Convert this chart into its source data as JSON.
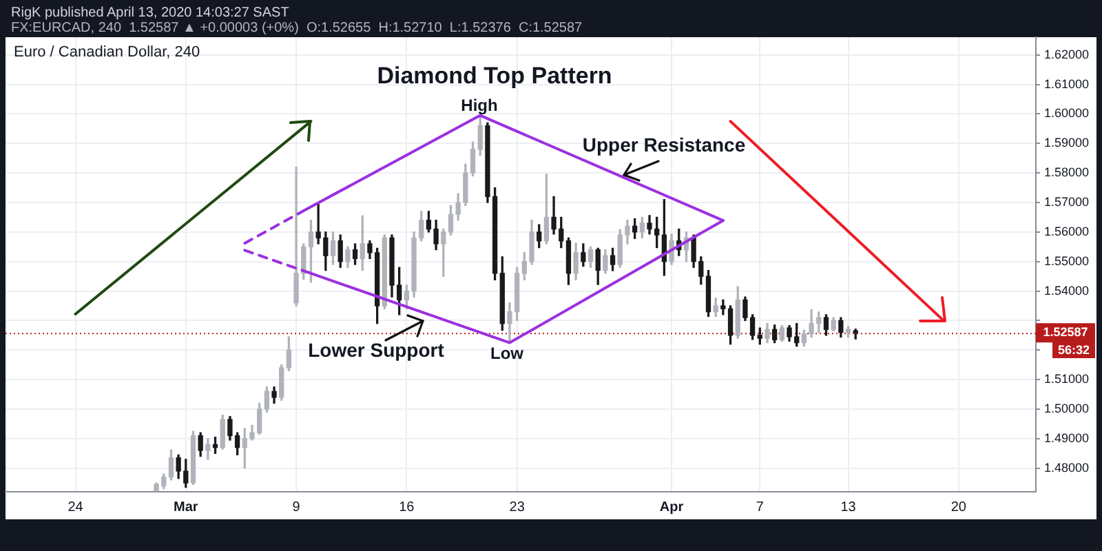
{
  "chart_data": {
    "type": "candlestick",
    "title": "Diamond Top Pattern",
    "subtitle": "Euro / Canadian Dollar, 240",
    "annotations": [
      "RigK published April 13, 2020 14:03:27 SAST",
      "FX:EURCAD, 240  1.52587 ▲ +0.00003 (+0%)  O:1.52655  H:1.52710  L:1.52376  C:1.52587",
      "High",
      "Low",
      "Upper Resistance",
      "Lower Support",
      "56:32"
    ],
    "categories": [
      null,
      null,
      null,
      null,
      null,
      null,
      null,
      null,
      null,
      "24",
      null,
      null,
      null,
      null,
      null,
      null,
      null,
      null,
      null,
      null,
      null,
      null,
      null,
      null,
      "Mar",
      null,
      null,
      null,
      null,
      null,
      null,
      null,
      null,
      null,
      null,
      null,
      null,
      null,
      null,
      "9",
      null,
      null,
      null,
      null,
      null,
      null,
      null,
      null,
      null,
      null,
      null,
      null,
      null,
      null,
      "16",
      null,
      null,
      null,
      null,
      null,
      null,
      null,
      null,
      null,
      null,
      null,
      null,
      null,
      null,
      "23",
      null,
      null,
      null,
      null,
      null,
      null,
      null,
      null,
      null,
      null,
      null,
      null,
      null,
      null,
      null,
      null,
      null,
      null,
      null,
      null,
      "Apr",
      null,
      null,
      null,
      null,
      null,
      null,
      null,
      null,
      null,
      null,
      null,
      "7",
      null,
      null,
      null,
      null,
      null,
      null,
      null,
      null,
      null,
      null,
      null,
      "13",
      null,
      null,
      null,
      null,
      null,
      null,
      null,
      null,
      null,
      null,
      null,
      null,
      null,
      null,
      "20",
      null,
      null,
      null,
      null,
      null,
      null,
      null,
      null,
      null,
      null
    ],
    "series": [
      {
        "colors": [
          null,
          null,
          null,
          null,
          null,
          null,
          null,
          null,
          null,
          null,
          null,
          null,
          null,
          null,
          null,
          null,
          null,
          null,
          null,
          null,
          "#b0b3ba",
          "#b0b3ba",
          "#b0b3ba",
          "#1a1a1a",
          "#1a1a1a",
          "#b0b3ba",
          "#1a1a1a",
          "#b0b3ba",
          "#1a1a1a",
          "#b0b3ba",
          "#1a1a1a",
          "#1a1a1a",
          "#b0b3ba",
          "#b0b3ba",
          "#b0b3ba",
          "#b0b3ba",
          "#1a1a1a",
          "#b0b3ba",
          "#b0b3ba",
          "#b0b3ba",
          "#b0b3ba",
          "#b0b3ba",
          "#1a1a1a",
          "#1a1a1a",
          "#b0b3ba",
          "#1a1a1a",
          "#b0b3ba",
          "#1a1a1a",
          "#b0b3ba",
          "#1a1a1a",
          "#1a1a1a",
          "#b0b3ba",
          "#1a1a1a",
          "#1a1a1a",
          "#b0b3ba",
          "#b0b3ba",
          "#b0b3ba",
          "#1a1a1a",
          "#1a1a1a",
          "#b0b3ba",
          "#b0b3ba",
          "#b0b3ba",
          "#b0b3ba",
          "#b0b3ba",
          "#b0b3ba",
          "#1a1a1a",
          "#1a1a1a",
          "#1a1a1a",
          "#b0b3ba",
          "#b0b3ba",
          "#b0b3ba",
          "#b0b3ba",
          "#1a1a1a",
          "#b0b3ba",
          "#1a1a1a",
          "#1a1a1a",
          "#1a1a1a",
          "#b0b3ba",
          "#1a1a1a",
          "#b0b3ba",
          "#1a1a1a",
          "#b0b3ba",
          "#1a1a1a",
          "#b0b3ba",
          "#b0b3ba",
          "#1a1a1a",
          "#b0b3ba",
          "#1a1a1a",
          "#1a1a1a",
          "#1a1a1a",
          "#b0b3ba",
          "#1a1a1a",
          "#b0b3ba",
          "#1a1a1a",
          "#1a1a1a",
          "#1a1a1a",
          "#b0b3ba",
          "#1a1a1a",
          "#1a1a1a",
          "#b0b3ba",
          "#1a1a1a",
          "#1a1a1a",
          "#1a1a1a",
          "#b0b3ba",
          "#1a1a1a",
          "#b0b3ba",
          "#1a1a1a",
          "#1a1a1a",
          "#b0b3ba",
          "#b0b3ba",
          "#b0b3ba",
          "#1a1a1a",
          "#b0b3ba",
          "#1a1a1a",
          "#b0b3ba",
          "#1a1a1a",
          null,
          null,
          null,
          null,
          null,
          null,
          null,
          null,
          null,
          null,
          null,
          null,
          null,
          null,
          null,
          null,
          null,
          null,
          null,
          null,
          null,
          null,
          null,
          null
        ],
        "ohlc": [
          null,
          null,
          null,
          null,
          null,
          null,
          null,
          null,
          null,
          null,
          null,
          null,
          null,
          null,
          null,
          null,
          null,
          null,
          null,
          null,
          [
            1.4724,
            1.475,
            1.4722,
            1.4745
          ],
          [
            1.474,
            1.478,
            1.473,
            1.477
          ],
          [
            1.477,
            1.4862,
            1.476,
            1.4835
          ],
          [
            1.4835,
            1.4845,
            1.4765,
            1.479
          ],
          [
            1.479,
            1.483,
            1.4735,
            1.475
          ],
          [
            1.475,
            1.4925,
            1.4745,
            1.491
          ],
          [
            1.491,
            1.492,
            1.484,
            1.486
          ],
          [
            1.486,
            1.49,
            1.483,
            1.488
          ],
          [
            1.488,
            1.4905,
            1.485,
            1.487
          ],
          [
            1.487,
            1.498,
            1.4865,
            1.4965
          ],
          [
            1.4965,
            1.4975,
            1.4895,
            1.491
          ],
          [
            1.491,
            1.492,
            1.4845,
            1.487
          ],
          [
            1.487,
            1.4935,
            1.48,
            1.49
          ],
          [
            1.49,
            1.4945,
            1.4895,
            1.492
          ],
          [
            1.492,
            1.502,
            1.4915,
            1.5
          ],
          [
            1.5,
            1.5075,
            1.499,
            1.506
          ],
          [
            1.506,
            1.5075,
            1.502,
            1.504
          ],
          [
            1.504,
            1.515,
            1.503,
            1.514
          ],
          [
            1.514,
            1.5245,
            1.513,
            1.52
          ],
          [
            1.536,
            1.582,
            1.535,
            1.546
          ],
          [
            1.546,
            1.556,
            1.544,
            1.555
          ],
          [
            1.555,
            1.564,
            1.543,
            1.56
          ],
          [
            1.56,
            1.5694,
            1.556,
            1.558
          ],
          [
            1.558,
            1.56,
            1.547,
            1.552
          ],
          [
            1.552,
            1.56,
            1.549,
            1.557
          ],
          [
            1.557,
            1.559,
            1.548,
            1.55
          ],
          [
            1.55,
            1.555,
            1.548,
            1.554
          ],
          [
            1.554,
            1.556,
            1.549,
            1.551
          ],
          [
            1.551,
            1.5655,
            1.547,
            1.556
          ],
          [
            1.556,
            1.557,
            1.551,
            1.553
          ],
          [
            1.553,
            1.5545,
            1.529,
            1.535
          ],
          [
            1.535,
            1.559,
            1.534,
            1.558
          ],
          [
            1.558,
            1.559,
            1.538,
            1.542
          ],
          [
            1.542,
            1.548,
            1.532,
            1.537
          ],
          [
            1.537,
            1.542,
            1.534,
            1.54
          ],
          [
            1.54,
            1.56,
            1.538,
            1.558
          ],
          [
            1.558,
            1.567,
            1.557,
            1.564
          ],
          [
            1.564,
            1.567,
            1.56,
            1.561
          ],
          [
            1.561,
            1.564,
            1.554,
            1.556
          ],
          [
            1.556,
            1.561,
            1.545,
            1.56
          ],
          [
            1.56,
            1.569,
            1.559,
            1.566
          ],
          [
            1.566,
            1.573,
            1.564,
            1.57
          ],
          [
            1.57,
            1.583,
            1.569,
            1.58
          ],
          [
            1.58,
            1.5905,
            1.579,
            1.588
          ],
          [
            1.588,
            1.599,
            1.586,
            1.596
          ],
          [
            1.596,
            1.597,
            1.57,
            1.572
          ],
          [
            1.572,
            1.575,
            1.5438,
            1.546
          ],
          [
            1.546,
            1.5516,
            1.5267,
            1.529
          ],
          [
            1.529,
            1.536,
            1.5228,
            1.533
          ],
          [
            1.533,
            1.548,
            1.53,
            1.546
          ],
          [
            1.546,
            1.5531,
            1.5438,
            1.55
          ],
          [
            1.55,
            1.564,
            1.549,
            1.56
          ],
          [
            1.56,
            1.5625,
            1.5547,
            1.557
          ],
          [
            1.557,
            1.5796,
            1.556,
            1.565
          ],
          [
            1.565,
            1.572,
            1.5593,
            1.561
          ],
          [
            1.561,
            1.565,
            1.5547,
            1.557
          ],
          [
            1.557,
            1.558,
            1.5422,
            1.546
          ],
          [
            1.546,
            1.5562,
            1.5438,
            1.553
          ],
          [
            1.553,
            1.556,
            1.5484,
            1.55
          ],
          [
            1.55,
            1.555,
            1.548,
            1.554
          ],
          [
            1.554,
            1.5545,
            1.5422,
            1.547
          ],
          [
            1.547,
            1.554,
            1.546,
            1.552
          ],
          [
            1.552,
            1.5545,
            1.5469,
            1.549
          ],
          [
            1.549,
            1.5608,
            1.548,
            1.559
          ],
          [
            1.559,
            1.564,
            1.556,
            1.562
          ],
          [
            1.562,
            1.5645,
            1.5578,
            1.56
          ],
          [
            1.56,
            1.565,
            1.558,
            1.563
          ],
          [
            1.563,
            1.5656,
            1.5593,
            1.561
          ],
          [
            1.561,
            1.565,
            1.5547,
            1.559
          ],
          [
            1.559,
            1.571,
            1.5453,
            1.55
          ],
          [
            1.55,
            1.5593,
            1.549,
            1.557
          ],
          [
            1.557,
            1.561,
            1.552,
            1.554
          ],
          [
            1.554,
            1.56,
            1.55,
            1.558
          ],
          [
            1.558,
            1.559,
            1.548,
            1.55
          ],
          [
            1.55,
            1.5516,
            1.5423,
            1.545
          ],
          [
            1.545,
            1.547,
            1.5314,
            1.533
          ],
          [
            1.533,
            1.5376,
            1.5314,
            1.535
          ],
          [
            1.535,
            1.537,
            1.532,
            1.534
          ],
          [
            1.534,
            1.535,
            1.522,
            1.525
          ],
          [
            1.525,
            1.5415,
            1.524,
            1.537
          ],
          [
            1.537,
            1.538,
            1.53,
            1.531
          ],
          [
            1.531,
            1.532,
            1.5236,
            1.525
          ],
          [
            1.525,
            1.5275,
            1.522,
            1.524
          ],
          [
            1.524,
            1.529,
            1.5225,
            1.527
          ],
          [
            1.527,
            1.5285,
            1.5225,
            1.5235
          ],
          [
            1.5235,
            1.5283,
            1.523,
            1.5275
          ],
          [
            1.5275,
            1.5283,
            1.523,
            1.5245
          ],
          [
            1.5245,
            1.529,
            1.5213,
            1.5225
          ],
          [
            1.5225,
            1.5267,
            1.5213,
            1.5255
          ],
          [
            1.5255,
            1.5337,
            1.5244,
            1.529
          ],
          [
            1.529,
            1.5329,
            1.526,
            1.531
          ],
          [
            1.531,
            1.532,
            1.525,
            1.527
          ],
          [
            1.527,
            1.531,
            1.5265,
            1.53
          ],
          [
            1.53,
            1.531,
            1.5244,
            1.526
          ],
          [
            1.526,
            1.528,
            1.5244,
            1.527
          ],
          [
            1.52655,
            1.5271,
            1.52376,
            1.52587
          ],
          null,
          null,
          null,
          null,
          null,
          null,
          null,
          null,
          null,
          null,
          null,
          null,
          null,
          null,
          null,
          null,
          null,
          null,
          null,
          null,
          null,
          null,
          null,
          null
        ]
      },
      {
        "type": "line",
        "color": "#9b30e0",
        "values": [
          null,
          null,
          null,
          null,
          null,
          null,
          null,
          null,
          null,
          null,
          null,
          null,
          null,
          null,
          null,
          null,
          null,
          null,
          null,
          null,
          null,
          null,
          null,
          null,
          null,
          null,
          null,
          null,
          null,
          null,
          null,
          null,
          null,
          null,
          null,
          null,
          null,
          null,
          null,
          null,
          1.5672,
          null,
          null,
          null,
          null,
          null,
          null,
          null,
          null,
          null,
          null,
          null,
          null,
          null,
          null,
          null,
          null,
          null,
          null,
          null,
          null,
          null,
          null,
          null,
          1.5995,
          null,
          null,
          null,
          null,
          null,
          null,
          null,
          null,
          null,
          null,
          null,
          null,
          null,
          null,
          null,
          null,
          null,
          null,
          null,
          null,
          null,
          null,
          null,
          null,
          null,
          null,
          null,
          null,
          null,
          null,
          null,
          null,
          1.5639,
          null,
          null,
          null,
          null,
          null,
          null,
          null,
          null,
          null,
          null,
          null,
          null,
          null,
          null,
          null,
          null,
          null,
          null,
          null,
          null,
          null,
          null,
          null,
          null,
          null,
          null,
          null,
          null,
          null,
          null,
          null,
          null,
          null,
          null,
          null,
          null,
          null,
          null,
          null,
          null,
          null,
          null
        ]
      },
      {
        "type": "line",
        "color": "#9b30e0",
        "values": [
          null,
          null,
          null,
          null,
          null,
          null,
          null,
          null,
          null,
          null,
          null,
          null,
          null,
          null,
          null,
          null,
          null,
          null,
          null,
          null,
          null,
          null,
          null,
          null,
          null,
          null,
          null,
          null,
          null,
          null,
          null,
          null,
          null,
          null,
          null,
          null,
          null,
          null,
          null,
          null,
          null,
          1.546,
          null,
          null,
          null,
          null,
          null,
          null,
          null,
          null,
          null,
          null,
          null,
          null,
          null,
          null,
          null,
          null,
          null,
          null,
          null,
          null,
          null,
          null,
          null,
          null,
          null,
          null,
          1.5225,
          null,
          null,
          null,
          null,
          null,
          null,
          null,
          null,
          null,
          null,
          null,
          null,
          null,
          null,
          null,
          null,
          null,
          null,
          null,
          null,
          null,
          null,
          null,
          null,
          null,
          null,
          null,
          null,
          1.5639,
          null,
          null,
          null,
          null,
          null,
          null,
          null,
          null,
          null,
          null,
          null,
          null,
          null,
          null,
          null,
          null,
          null,
          null,
          null,
          null,
          null,
          null,
          null,
          null,
          null,
          null,
          null,
          null,
          null,
          null,
          null,
          null,
          null,
          null,
          null,
          null,
          null,
          null,
          null,
          null,
          null,
          null
        ]
      },
      {
        "type": "line",
        "color": "#9b30e0",
        "line_style": "dashed",
        "values": [
          null,
          null,
          null,
          null,
          null,
          null,
          null,
          null,
          null,
          null,
          null,
          null,
          null,
          null,
          null,
          null,
          null,
          null,
          null,
          null,
          null,
          null,
          null,
          null,
          null,
          null,
          null,
          null,
          null,
          null,
          null,
          null,
          1.5562,
          null,
          null,
          null,
          null,
          null,
          null,
          null,
          1.5672,
          null,
          null,
          null,
          null,
          null,
          null,
          null,
          null,
          null,
          null,
          null,
          null,
          null,
          null,
          null,
          null,
          null,
          null,
          null,
          null,
          null,
          null,
          null,
          null,
          null,
          null,
          null,
          null,
          null,
          null,
          null,
          null,
          null,
          null,
          null,
          null,
          null,
          null,
          null,
          null,
          null,
          null,
          null,
          null,
          null,
          null,
          null,
          null,
          null,
          null,
          null,
          null,
          null,
          null,
          null,
          null,
          null,
          null,
          null,
          null,
          null,
          null,
          null,
          null,
          null,
          null,
          null,
          null,
          null,
          null,
          null,
          null,
          null,
          null,
          null,
          null,
          null,
          null,
          null,
          null,
          null,
          null,
          null,
          null,
          null,
          null,
          null,
          null,
          null,
          null,
          null,
          null,
          null,
          null,
          null,
          null,
          null,
          null,
          null
        ]
      },
      {
        "type": "line",
        "color": "#9b30e0",
        "line_style": "dashed",
        "values": [
          null,
          null,
          null,
          null,
          null,
          null,
          null,
          null,
          null,
          null,
          null,
          null,
          null,
          null,
          null,
          null,
          null,
          null,
          null,
          null,
          null,
          null,
          null,
          null,
          null,
          null,
          null,
          null,
          null,
          null,
          null,
          null,
          1.5538,
          null,
          null,
          null,
          null,
          null,
          null,
          null,
          null,
          1.546,
          null,
          null,
          null,
          null,
          null,
          null,
          null,
          null,
          null,
          null,
          null,
          null,
          null,
          null,
          null,
          null,
          null,
          null,
          null,
          null,
          null,
          null,
          null,
          null,
          null,
          null,
          null,
          null,
          null,
          null,
          null,
          null,
          null,
          null,
          null,
          null,
          null,
          null,
          null,
          null,
          null,
          null,
          null,
          null,
          null,
          null,
          null,
          null,
          null,
          null,
          null,
          null,
          null,
          null,
          null,
          null,
          null,
          null,
          null,
          null,
          null,
          null,
          null,
          null,
          null,
          null,
          null,
          null,
          null,
          null,
          null,
          null,
          null,
          null,
          null,
          null,
          null,
          null,
          null,
          null,
          null,
          null,
          null,
          null,
          null,
          null,
          null,
          null,
          null,
          null,
          null,
          null,
          null,
          null,
          null,
          null,
          null,
          null
        ]
      },
      {
        "type": "line",
        "color": "#1f4a12",
        "values": [
          null,
          null,
          null,
          null,
          null,
          null,
          null,
          null,
          null,
          1.5322,
          null,
          null,
          null,
          null,
          null,
          null,
          null,
          null,
          null,
          null,
          null,
          null,
          null,
          null,
          null,
          null,
          null,
          null,
          null,
          null,
          null,
          null,
          null,
          null,
          null,
          null,
          null,
          null,
          null,
          null,
          null,
          1.5975,
          null,
          null,
          null,
          null,
          null,
          null,
          null,
          null,
          null,
          null,
          null,
          null,
          null,
          null,
          null,
          null,
          null,
          null,
          null,
          null,
          null,
          null,
          null,
          null,
          null,
          null,
          null,
          null,
          null,
          null,
          null,
          null,
          null,
          null,
          null,
          null,
          null,
          null,
          null,
          null,
          null,
          null,
          null,
          null,
          null,
          null,
          null,
          null,
          null,
          null,
          null,
          null,
          null,
          null,
          null,
          null,
          null,
          null,
          null,
          null,
          null,
          null,
          null,
          null,
          null,
          null,
          null,
          null,
          null,
          null,
          null,
          null,
          null,
          null,
          null,
          null,
          null,
          null,
          null,
          null,
          null,
          null,
          null,
          null,
          null,
          null,
          null,
          null,
          null,
          null,
          null,
          null,
          null,
          null,
          null,
          null,
          null,
          null
        ]
      },
      {
        "type": "line",
        "color": "#ee1c25",
        "values": [
          null,
          null,
          null,
          null,
          null,
          null,
          null,
          null,
          null,
          null,
          null,
          null,
          null,
          null,
          null,
          null,
          null,
          null,
          null,
          null,
          null,
          null,
          null,
          null,
          null,
          null,
          null,
          null,
          null,
          null,
          null,
          null,
          null,
          null,
          null,
          null,
          null,
          null,
          null,
          null,
          null,
          null,
          null,
          null,
          null,
          null,
          null,
          null,
          null,
          null,
          null,
          null,
          null,
          null,
          null,
          null,
          null,
          null,
          null,
          null,
          null,
          null,
          null,
          null,
          null,
          null,
          null,
          null,
          null,
          null,
          null,
          null,
          null,
          null,
          null,
          null,
          null,
          null,
          null,
          null,
          null,
          null,
          null,
          null,
          null,
          null,
          null,
          null,
          null,
          null,
          null,
          null,
          null,
          null,
          null,
          null,
          null,
          null,
          1.5975,
          null,
          null,
          null,
          null,
          null,
          null,
          null,
          null,
          null,
          null,
          null,
          null,
          null,
          null,
          null,
          null,
          null,
          null,
          null,
          null,
          null,
          null,
          null,
          null,
          null,
          null,
          null,
          null,
          1.5299,
          null,
          null,
          null,
          null,
          null,
          null,
          null,
          null,
          null,
          null,
          null,
          null
        ]
      }
    ],
    "ylim": [
      1.472,
      1.626
    ],
    "yticks": [
      {
        "value": 1.48,
        "label": "1.48000"
      },
      {
        "value": 1.49,
        "label": "1.49000"
      },
      {
        "value": 1.5,
        "label": "1.50000"
      },
      {
        "value": 1.51,
        "label": "1.51000"
      },
      {
        "value": 1.52,
        "label": null
      },
      {
        "value": 1.53,
        "label": null
      },
      {
        "value": 1.54,
        "label": "1.54000"
      },
      {
        "value": 1.55,
        "label": "1.55000"
      },
      {
        "value": 1.56,
        "label": "1.56000"
      },
      {
        "value": 1.57,
        "label": "1.57000"
      },
      {
        "value": 1.58,
        "label": "1.58000"
      },
      {
        "value": 1.59,
        "label": "1.59000"
      },
      {
        "value": 1.6,
        "label": "1.60000"
      },
      {
        "value": 1.61,
        "label": "1.61000"
      },
      {
        "value": 1.62,
        "label": "1.62000"
      }
    ],
    "ref_lines": [
      {
        "axis": "y",
        "value": 1.52587,
        "label": "1.52587",
        "color": "#b71c1c",
        "line_style": "dotted"
      }
    ],
    "grid": true
  }
}
